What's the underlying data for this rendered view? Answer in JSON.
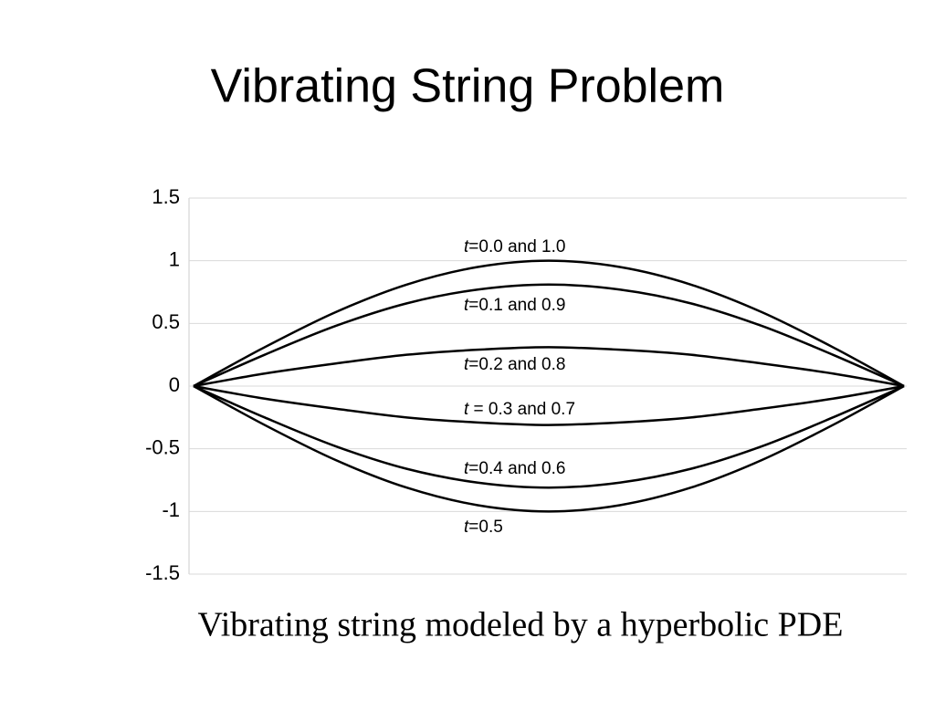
{
  "chart_data": {
    "type": "line",
    "title": "Vibrating String Problem",
    "caption": "Vibrating string modeled by a hyperbolic PDE",
    "x": [
      0,
      0.1,
      0.2,
      0.3,
      0.4,
      0.5,
      0.6,
      0.7,
      0.8,
      0.9,
      1
    ],
    "xlim": [
      0,
      1
    ],
    "ylim": [
      -1.5,
      1.5
    ],
    "yticks": [
      1.5,
      1,
      0.5,
      0,
      -0.5,
      -1,
      -1.5
    ],
    "grid": true,
    "series": [
      {
        "name": "t=0.0 and 1.0",
        "color": "#000000",
        "values": [
          0,
          0.31,
          0.59,
          0.81,
          0.95,
          1,
          0.95,
          0.81,
          0.59,
          0.31,
          0
        ]
      },
      {
        "name": "t=0.1 and 0.9",
        "color": "#000000",
        "values": [
          0,
          0.25,
          0.48,
          0.66,
          0.77,
          0.81,
          0.77,
          0.66,
          0.48,
          0.25,
          0
        ]
      },
      {
        "name": "t=0.2 and 0.8",
        "color": "#000000",
        "values": [
          0,
          0.1,
          0.18,
          0.25,
          0.29,
          0.31,
          0.29,
          0.25,
          0.18,
          0.1,
          0
        ]
      },
      {
        "name": "t = 0.3 and 0.7",
        "color": "#000000",
        "values": [
          0,
          -0.1,
          -0.18,
          -0.25,
          -0.29,
          -0.31,
          -0.29,
          -0.25,
          -0.18,
          -0.1,
          0
        ]
      },
      {
        "name": "t=0.4 and 0.6",
        "color": "#000000",
        "values": [
          0,
          -0.25,
          -0.48,
          -0.66,
          -0.77,
          -0.81,
          -0.77,
          -0.66,
          -0.48,
          -0.25,
          0
        ]
      },
      {
        "name": "t=0.5",
        "color": "#000000",
        "values": [
          0,
          -0.31,
          -0.59,
          -0.81,
          -0.95,
          -1,
          -0.95,
          -0.81,
          -0.59,
          -0.31,
          0
        ]
      }
    ]
  }
}
